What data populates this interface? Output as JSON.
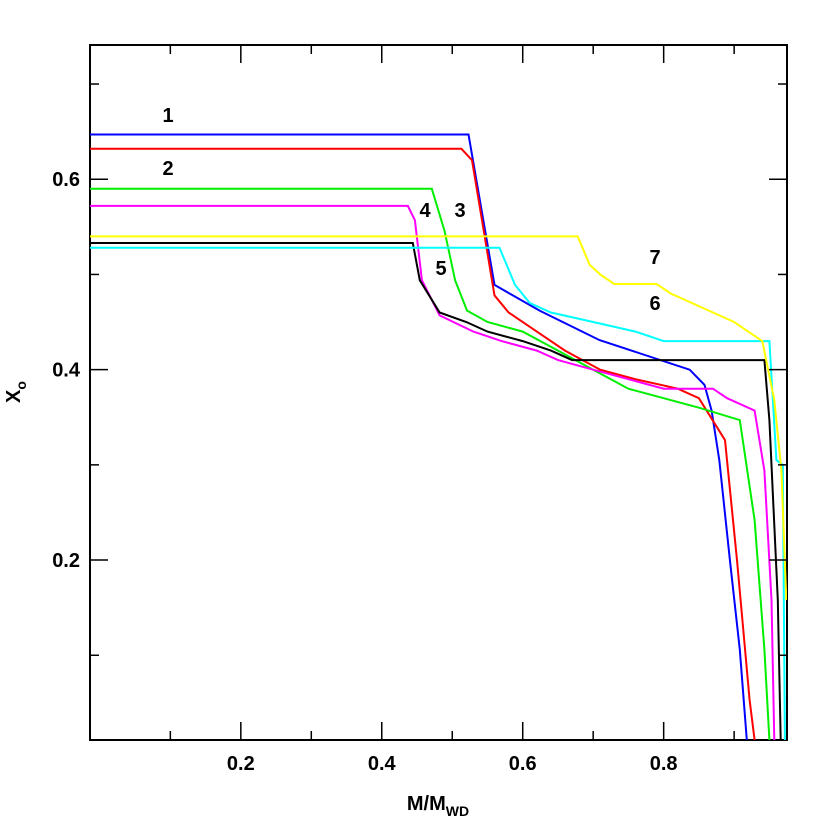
{
  "chart_data": {
    "type": "line",
    "xlabel": {
      "text": "M/M",
      "sub": "WD"
    },
    "ylabel": {
      "text": "X",
      "sub": "o"
    },
    "xlim": [
      -0.014,
      0.975
    ],
    "ylim": [
      0.011,
      0.741
    ],
    "xticks": [
      0.2,
      0.4,
      0.6,
      0.8
    ],
    "yticks": [
      0.2,
      0.4,
      0.6
    ],
    "xminor": [
      0.1,
      0.3,
      0.5,
      0.7,
      0.9
    ],
    "yminor": [
      0.1,
      0.3,
      0.5,
      0.7
    ],
    "series": [
      {
        "name": "1",
        "color": "#0000ff",
        "x": [
          -0.014,
          0.523,
          0.56,
          0.624,
          0.709,
          0.837,
          0.858,
          0.868,
          0.879,
          0.894,
          0.908,
          0.918
        ],
        "values": [
          0.647,
          0.647,
          0.489,
          0.462,
          0.431,
          0.4,
          0.384,
          0.357,
          0.305,
          0.2,
          0.106,
          0.011
        ]
      },
      {
        "name": "2",
        "color": "#ff0000",
        "x": [
          -0.014,
          0.513,
          0.528,
          0.56,
          0.58,
          0.62,
          0.66,
          0.71,
          0.76,
          0.82,
          0.85,
          0.887,
          0.904,
          0.922,
          0.929
        ],
        "values": [
          0.632,
          0.632,
          0.62,
          0.478,
          0.46,
          0.44,
          0.42,
          0.4,
          0.39,
          0.38,
          0.37,
          0.326,
          0.2,
          0.053,
          0.011
        ]
      },
      {
        "name": "3",
        "color": "#00ee00",
        "x": [
          -0.014,
          0.471,
          0.489,
          0.504,
          0.521,
          0.55,
          0.6,
          0.65,
          0.7,
          0.75,
          0.8,
          0.85,
          0.908,
          0.929,
          0.943,
          0.95
        ],
        "values": [
          0.59,
          0.59,
          0.546,
          0.494,
          0.462,
          0.45,
          0.44,
          0.42,
          0.4,
          0.38,
          0.37,
          0.36,
          0.347,
          0.242,
          0.106,
          0.011
        ]
      },
      {
        "name": "4",
        "color": "#ff00ff",
        "x": [
          -0.014,
          0.437,
          0.447,
          0.457,
          0.482,
          0.53,
          0.57,
          0.62,
          0.65,
          0.7,
          0.75,
          0.8,
          0.87,
          0.89,
          0.929,
          0.943,
          0.953,
          0.957
        ],
        "values": [
          0.572,
          0.572,
          0.557,
          0.494,
          0.457,
          0.44,
          0.43,
          0.42,
          0.41,
          0.4,
          0.39,
          0.38,
          0.38,
          0.37,
          0.357,
          0.294,
          0.158,
          0.011
        ]
      },
      {
        "name": "5",
        "color": "#000000",
        "x": [
          -0.014,
          0.444,
          0.454,
          0.482,
          0.52,
          0.55,
          0.6,
          0.64,
          0.67,
          0.943,
          0.95,
          0.962,
          0.966
        ],
        "values": [
          0.533,
          0.533,
          0.494,
          0.46,
          0.45,
          0.44,
          0.43,
          0.42,
          0.41,
          0.41,
          0.347,
          0.158,
          0.011
        ]
      },
      {
        "name": "6",
        "color": "#00ffff",
        "x": [
          -0.014,
          0.567,
          0.589,
          0.61,
          0.64,
          0.7,
          0.76,
          0.8,
          0.95,
          0.96,
          0.969,
          0.972
        ],
        "values": [
          0.528,
          0.528,
          0.489,
          0.47,
          0.46,
          0.45,
          0.44,
          0.43,
          0.43,
          0.305,
          0.3,
          0.011
        ]
      },
      {
        "name": "7",
        "color": "#ffff00",
        "x": [
          -0.014,
          0.678,
          0.695,
          0.71,
          0.73,
          0.79,
          0.81,
          0.84,
          0.87,
          0.9,
          0.92,
          0.94,
          0.957,
          0.967,
          0.974
        ],
        "values": [
          0.54,
          0.54,
          0.51,
          0.5,
          0.49,
          0.49,
          0.48,
          0.47,
          0.46,
          0.45,
          0.44,
          0.43,
          0.368,
          0.294,
          0.158
        ]
      }
    ]
  }
}
